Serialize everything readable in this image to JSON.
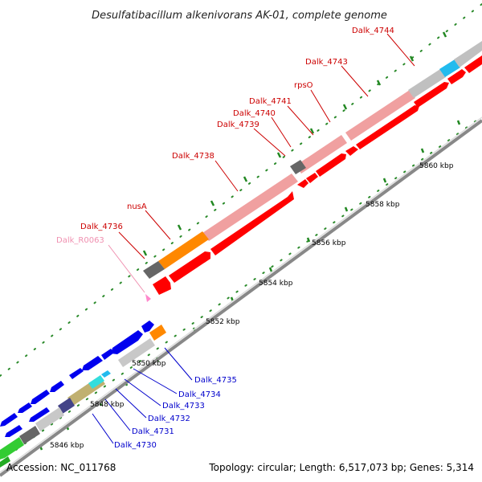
{
  "title": "Desulfatibacillum alkenivorans AK-01, complete genome",
  "footer": {
    "accession": "Accession: NC_011768",
    "summary": "Topology: circular; Length: 6,517,073 bp; Genes: 5,314"
  },
  "colors": {
    "forward_gene": "#ff0000",
    "forward_cds_light": "#f0a0a0",
    "reverse_gene": "#0000ee",
    "label_red": "#cc0000",
    "label_blue": "#0000cc",
    "label_pink": "#f090b0",
    "backbone": "#999999",
    "tick": "#228822"
  },
  "ticks": [
    "5846 kbp",
    "5848 kbp",
    "5850 kbp",
    "5852 kbp",
    "5854 kbp",
    "5856 kbp",
    "5858 kbp",
    "5860 kbp"
  ],
  "labels_forward": [
    "Dalk_R0063",
    "Dalk_4736",
    "nusA",
    "Dalk_4738",
    "Dalk_4739",
    "Dalk_4740",
    "Dalk_4741",
    "rpsO",
    "Dalk_4743",
    "Dalk_4744"
  ],
  "labels_reverse": [
    "Dalk_4730",
    "Dalk_4731",
    "Dalk_4732",
    "Dalk_4733",
    "Dalk_4734",
    "Dalk_4735"
  ]
}
